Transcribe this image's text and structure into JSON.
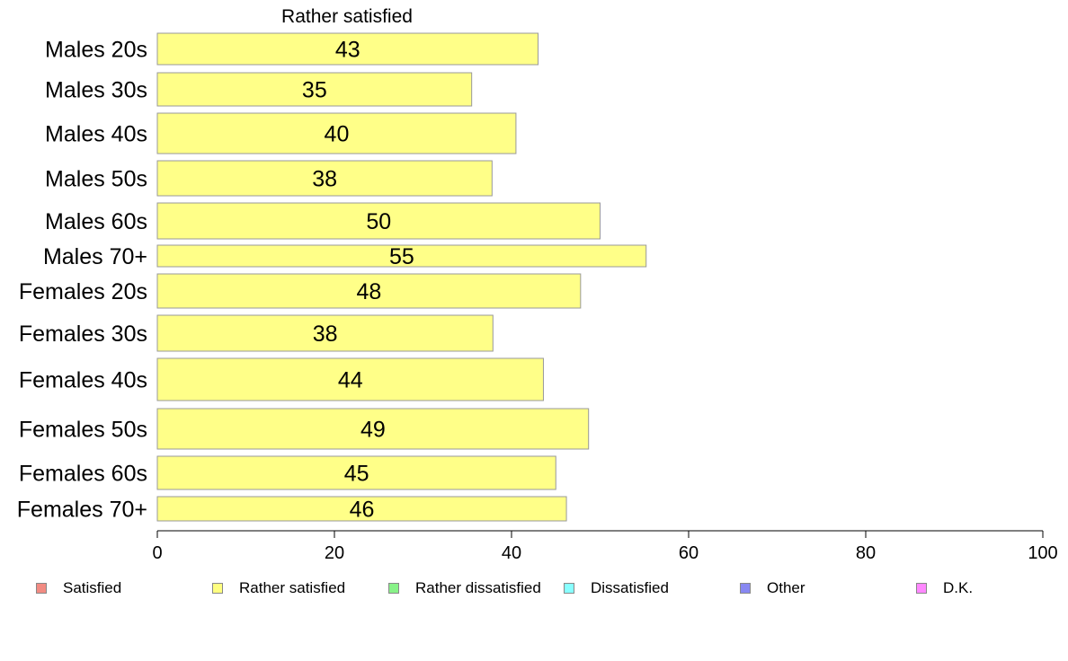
{
  "chart_data": {
    "type": "bar",
    "orientation": "horizontal",
    "title": "Rather satisfied",
    "categories": [
      "Males 20s",
      "Males 30s",
      "Males 40s",
      "Males 50s",
      "Males 60s",
      "Males 70+",
      "Females 20s",
      "Females 30s",
      "Females 40s",
      "Females 50s",
      "Females 60s",
      "Females 70+"
    ],
    "values": [
      43,
      35,
      40,
      38,
      50,
      55,
      48,
      38,
      44,
      49,
      45,
      46
    ],
    "bar_values": [
      43,
      35.5,
      40.5,
      37.8,
      50,
      55.2,
      47.8,
      37.9,
      43.6,
      48.7,
      45,
      46.2
    ],
    "xlim": [
      0,
      100
    ],
    "xticks": [
      0,
      20,
      40,
      60,
      80,
      100
    ],
    "bar_color": "#ffff88",
    "bar_border_color": "#999999",
    "grid": false,
    "legend_position": "bottom",
    "legend": [
      {
        "label": "Satisfied",
        "color": "#f28b82"
      },
      {
        "label": "Rather satisfied",
        "color": "#ffff80"
      },
      {
        "label": "Rather dissatisfied",
        "color": "#88f288"
      },
      {
        "label": "Dissatisfied",
        "color": "#88ffff"
      },
      {
        "label": "Other",
        "color": "#8888f2"
      },
      {
        "label": "D.K.",
        "color": "#ff88ff"
      }
    ]
  }
}
